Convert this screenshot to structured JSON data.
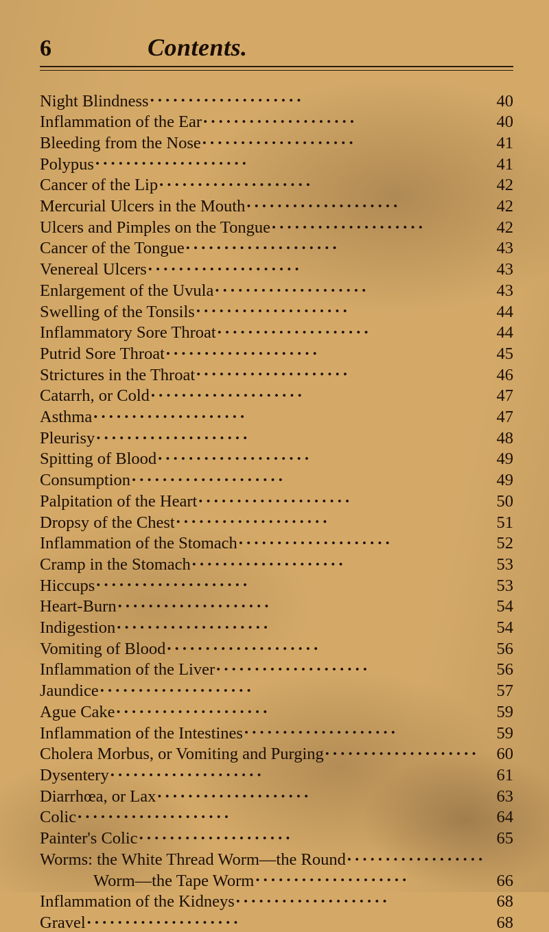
{
  "page": {
    "number": "6",
    "title": "Contents.",
    "background_color": "#d4a968",
    "text_color": "#1a0e05",
    "rule_color": "#2a1a0c",
    "font_family": "Georgia serif",
    "body_fontsize": 24.5,
    "header_fontsize": 36,
    "pagenum_fontsize": 34
  },
  "entries": [
    {
      "title": "Night Blindness",
      "page": "40"
    },
    {
      "title": "Inflammation of the Ear",
      "page": "40"
    },
    {
      "title": "Bleeding from the Nose",
      "page": "41"
    },
    {
      "title": "Polypus",
      "page": "41"
    },
    {
      "title": "Cancer of the Lip",
      "page": "42"
    },
    {
      "title": "Mercurial Ulcers in the Mouth",
      "page": "42"
    },
    {
      "title": "Ulcers and Pimples on the Tongue",
      "page": "42"
    },
    {
      "title": "Cancer of the Tongue",
      "page": "43"
    },
    {
      "title": "Venereal Ulcers",
      "page": "43"
    },
    {
      "title": "Enlargement of the Uvula",
      "page": "43"
    },
    {
      "title": "Swelling of the Tonsils",
      "page": "44"
    },
    {
      "title": "Inflammatory Sore Throat",
      "page": "44"
    },
    {
      "title": "Putrid Sore Throat",
      "page": "45"
    },
    {
      "title": "Strictures in the Throat",
      "page": "46"
    },
    {
      "title": "Catarrh, or Cold",
      "page": "47"
    },
    {
      "title": "Asthma",
      "page": "47"
    },
    {
      "title": "Pleurisy",
      "page": "48"
    },
    {
      "title": "Spitting of Blood",
      "page": "49"
    },
    {
      "title": "Consumption",
      "page": "49"
    },
    {
      "title": "Palpitation of the Heart",
      "page": "50"
    },
    {
      "title": "Dropsy of the Chest",
      "page": "51"
    },
    {
      "title": "Inflammation of the Stomach",
      "page": "52"
    },
    {
      "title": "Cramp in the Stomach",
      "page": "53"
    },
    {
      "title": "Hiccups",
      "page": "53"
    },
    {
      "title": "Heart-Burn",
      "page": "54"
    },
    {
      "title": "Indigestion",
      "page": "54"
    },
    {
      "title": "Vomiting of Blood",
      "page": "56"
    },
    {
      "title": "Inflammation of the Liver",
      "page": "56"
    },
    {
      "title": "Jaundice",
      "page": "57"
    },
    {
      "title": "Ague Cake",
      "page": "59"
    },
    {
      "title": "Inflammation of the Intestines",
      "page": "59"
    },
    {
      "title": "Cholera Morbus, or Vomiting and Purging",
      "page": "60"
    },
    {
      "title": "Dysentery",
      "page": "61"
    },
    {
      "title": "Diarrhœa, or Lax",
      "page": "63"
    },
    {
      "title": "Colic",
      "page": "64"
    },
    {
      "title": "Painter's Colic",
      "page": "65"
    },
    {
      "title": "Worms: the White Thread Worm—the Round",
      "page": "",
      "nopage": true
    },
    {
      "title": "Worm—the Tape Worm",
      "page": "66",
      "indent": true
    },
    {
      "title": "Inflammation of the Kidneys",
      "page": "68"
    },
    {
      "title": "Gravel",
      "page": "68"
    }
  ]
}
